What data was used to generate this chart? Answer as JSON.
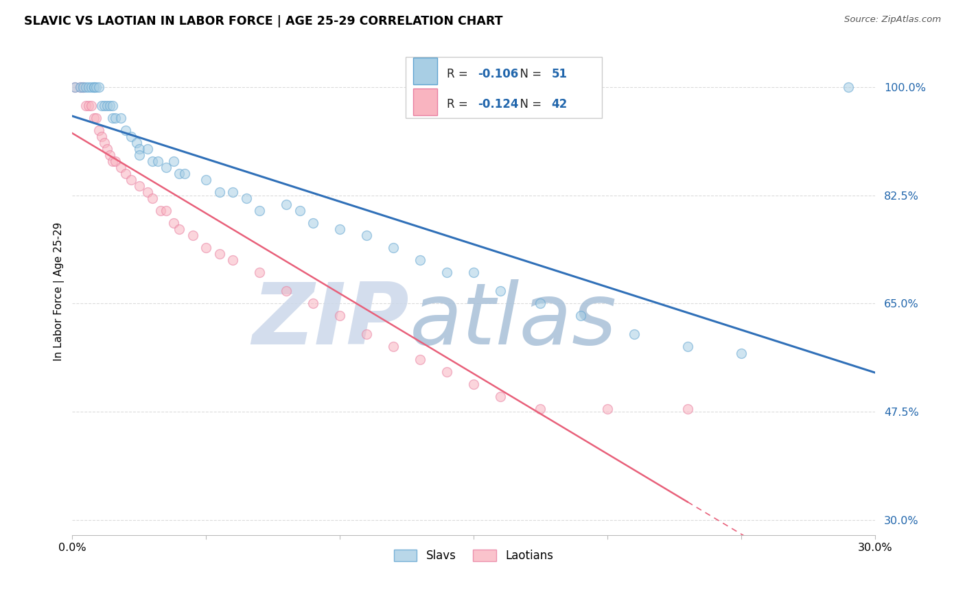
{
  "title": "SLAVIC VS LAOTIAN IN LABOR FORCE | AGE 25-29 CORRELATION CHART",
  "source": "Source: ZipAtlas.com",
  "ylabel": "In Labor Force | Age 25-29",
  "xlim": [
    0.0,
    0.3
  ],
  "ylim": [
    0.275,
    1.065
  ],
  "yticks": [
    0.3,
    0.475,
    0.65,
    0.825,
    1.0
  ],
  "ytick_labels": [
    "30.0%",
    "47.5%",
    "65.0%",
    "82.5%",
    "100.0%"
  ],
  "xticks": [
    0.0,
    0.05,
    0.1,
    0.15,
    0.2,
    0.25,
    0.3
  ],
  "xtick_labels": [
    "0.0%",
    "",
    "",
    "",
    "",
    "",
    "30.0%"
  ],
  "slavs_color": "#a8cee4",
  "laotians_color": "#f9b4c0",
  "slavs_edge_color": "#5fa3d0",
  "laotians_edge_color": "#e87ea0",
  "trend_slavs_color": "#3070b8",
  "trend_laotians_color": "#e8607a",
  "R_slavs": -0.106,
  "N_slavs": 51,
  "R_laotians": -0.124,
  "N_laotians": 42,
  "marker_size": 100,
  "alpha": 0.55,
  "slavs_x": [
    0.001,
    0.003,
    0.004,
    0.005,
    0.006,
    0.007,
    0.008,
    0.008,
    0.009,
    0.01,
    0.011,
    0.012,
    0.013,
    0.014,
    0.015,
    0.015,
    0.016,
    0.018,
    0.02,
    0.022,
    0.024,
    0.025,
    0.025,
    0.028,
    0.03,
    0.032,
    0.035,
    0.038,
    0.04,
    0.042,
    0.05,
    0.055,
    0.06,
    0.065,
    0.07,
    0.08,
    0.085,
    0.09,
    0.1,
    0.11,
    0.12,
    0.13,
    0.14,
    0.15,
    0.16,
    0.175,
    0.19,
    0.21,
    0.23,
    0.25,
    0.29
  ],
  "slavs_y": [
    1.0,
    1.0,
    1.0,
    1.0,
    1.0,
    1.0,
    1.0,
    1.0,
    1.0,
    1.0,
    0.97,
    0.97,
    0.97,
    0.97,
    0.97,
    0.95,
    0.95,
    0.95,
    0.93,
    0.92,
    0.91,
    0.9,
    0.89,
    0.9,
    0.88,
    0.88,
    0.87,
    0.88,
    0.86,
    0.86,
    0.85,
    0.83,
    0.83,
    0.82,
    0.8,
    0.81,
    0.8,
    0.78,
    0.77,
    0.76,
    0.74,
    0.72,
    0.7,
    0.7,
    0.67,
    0.65,
    0.63,
    0.6,
    0.58,
    0.57,
    1.0
  ],
  "laotians_x": [
    0.001,
    0.003,
    0.004,
    0.005,
    0.006,
    0.007,
    0.008,
    0.009,
    0.01,
    0.011,
    0.012,
    0.013,
    0.014,
    0.015,
    0.016,
    0.018,
    0.02,
    0.022,
    0.025,
    0.028,
    0.03,
    0.033,
    0.035,
    0.038,
    0.04,
    0.045,
    0.05,
    0.055,
    0.06,
    0.07,
    0.08,
    0.09,
    0.1,
    0.11,
    0.12,
    0.13,
    0.14,
    0.15,
    0.16,
    0.175,
    0.2,
    0.23
  ],
  "laotians_y": [
    1.0,
    1.0,
    1.0,
    0.97,
    0.97,
    0.97,
    0.95,
    0.95,
    0.93,
    0.92,
    0.91,
    0.9,
    0.89,
    0.88,
    0.88,
    0.87,
    0.86,
    0.85,
    0.84,
    0.83,
    0.82,
    0.8,
    0.8,
    0.78,
    0.77,
    0.76,
    0.74,
    0.73,
    0.72,
    0.7,
    0.67,
    0.65,
    0.63,
    0.6,
    0.58,
    0.56,
    0.54,
    0.52,
    0.5,
    0.48,
    0.48,
    0.48
  ],
  "laotians_trend_solid_end": 0.175,
  "background_color": "#ffffff",
  "grid_color": "#cccccc",
  "watermark_zip": "ZIP",
  "watermark_atlas": "atlas",
  "watermark_color_zip": "#ccd8ea",
  "watermark_color_atlas": "#a8c0d8"
}
